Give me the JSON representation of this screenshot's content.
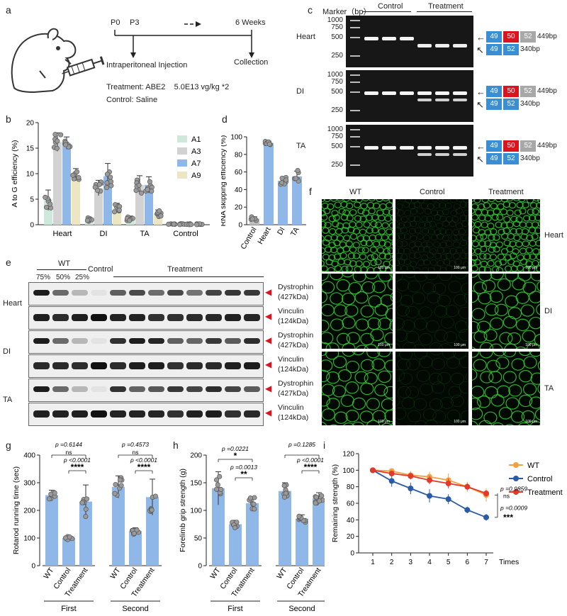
{
  "panels": {
    "a": "a",
    "b": "b",
    "c": "c",
    "d": "d",
    "e": "e",
    "f": "f",
    "g": "g",
    "h": "h",
    "i": "i"
  },
  "panel_a": {
    "timeline": [
      "P0",
      "P3",
      "6 Weeks"
    ],
    "injection_label": "Intraperitoneal Injection",
    "collection_label": "Collection",
    "treatment_text": "Treatment: ABE2    5.0E13 vg/kg *2",
    "control_text": "Control: Saline",
    "colors": {
      "arrow": "#222222",
      "mouse": "#333333"
    }
  },
  "panel_c": {
    "marker_label": "Marker（bp）",
    "group_labels": [
      "Control",
      "Treatment"
    ],
    "tissues": [
      "Heart",
      "DI",
      "TA"
    ],
    "ladder": [
      "1000",
      "750",
      "500",
      "250"
    ],
    "band_labels": [
      "449bp",
      "340bp"
    ],
    "exons_full": [
      "49",
      "50",
      "52"
    ],
    "exons_skip": [
      "49",
      "52"
    ],
    "colors": {
      "exon49": "#3a8fd4",
      "exon50": "#d9141e",
      "exon52_grey": "#a8a8a8",
      "exon52_blue": "#3a8fd4"
    }
  },
  "panel_e": {
    "wt_label": "WT",
    "wt_percents": [
      "75%",
      "50%",
      "25%"
    ],
    "control_label": "Control",
    "treatment_label": "Treatment",
    "tissues": [
      "Heart",
      "DI",
      "TA"
    ],
    "proteins": [
      {
        "name": "Dystrophin",
        "size": "(427kDa)"
      },
      {
        "name": "Vinculin",
        "size": "(124kDa)"
      }
    ],
    "arrow_color": "#d9141e"
  },
  "panel_f": {
    "columns": [
      "WT",
      "Control",
      "Treatment"
    ],
    "rows": [
      "Heart",
      "DI",
      "TA"
    ],
    "scale_bar": "100 μm",
    "colors": {
      "stain": "#32c832",
      "background": "#020802"
    }
  },
  "panel_g": {
    "p_first_ns": "p =0.6144",
    "ns": "ns",
    "p_first_sig": "p <0.0001",
    "stars_first": "****",
    "p_second_ns": "p =0.4573",
    "p_second_sig": "p <0.0001",
    "stars_second": "****"
  },
  "panel_h": {
    "p_first_a": "p =0.0221",
    "star1": "*",
    "p_first_b": "p =0.0013",
    "star2": "**",
    "p_second_ns": "p =0.1285",
    "p_second_sig": "p <0.0001",
    "star4": "****"
  },
  "panel_i": {
    "p_ns": "p =0.9859",
    "ns": "ns",
    "p_sig": "p =0.0009",
    "stars": "***"
  },
  "chart_data": [
    {
      "id": "b",
      "type": "bar",
      "ylabel": "A to G efficiency  (%)",
      "ylim": [
        0,
        20
      ],
      "yticks": [
        0,
        5,
        10,
        15,
        20
      ],
      "categories": [
        "Heart",
        "DI",
        "TA",
        "Control"
      ],
      "series": [
        {
          "name": "A1",
          "color": "#cfe8dc",
          "values": [
            4.8,
            1.0,
            1.2,
            0.1
          ],
          "err": [
            2.0,
            0.4,
            0.5,
            0.1
          ]
        },
        {
          "name": "A3",
          "color": "#d2d2d2",
          "values": [
            16.2,
            7.2,
            7.8,
            0.1
          ],
          "err": [
            1.8,
            1.5,
            1.8,
            0.1
          ]
        },
        {
          "name": "A7",
          "color": "#8fb8e8",
          "values": [
            16.0,
            9.5,
            7.8,
            0.1
          ],
          "err": [
            1.2,
            2.5,
            1.6,
            0.1
          ]
        },
        {
          "name": "A9",
          "color": "#ece6c2",
          "values": [
            9.8,
            3.3,
            2.2,
            0.1
          ],
          "err": [
            1.2,
            0.9,
            0.7,
            0.1
          ]
        }
      ]
    },
    {
      "id": "d",
      "type": "bar",
      "ylabel": "RNA skipping efficiency (%)",
      "ylim": [
        0,
        100
      ],
      "yticks": [
        0,
        20,
        40,
        60,
        80,
        100
      ],
      "categories": [
        "Control",
        "Heart",
        "DI",
        "TA"
      ],
      "colors": [
        "#bfbfbf",
        "#8fb8e8",
        "#8fb8e8",
        "#8fb8e8"
      ],
      "values": [
        7,
        93,
        50,
        55
      ],
      "err": [
        2,
        2,
        4,
        6
      ]
    },
    {
      "id": "g",
      "type": "bar",
      "ylabel": "Rotarod running time (sec)",
      "ylim": [
        0,
        400
      ],
      "yticks": [
        0,
        100,
        200,
        300,
        400
      ],
      "groups": [
        "First",
        "Second"
      ],
      "categories": [
        "WT",
        "Control",
        "Treatment"
      ],
      "values": [
        [
          255,
          100,
          232
        ],
        [
          285,
          125,
          248
        ]
      ],
      "err": [
        [
          18,
          7,
          60
        ],
        [
          40,
          12,
          65
        ]
      ]
    },
    {
      "id": "h",
      "type": "bar",
      "ylabel": "Forelimb grip strength (g)",
      "ylim": [
        0,
        200
      ],
      "yticks": [
        0,
        50,
        100,
        150,
        200
      ],
      "groups": [
        "First",
        "Second"
      ],
      "categories": [
        "WT",
        "Control",
        "Treatment"
      ],
      "values": [
        [
          140,
          75,
          113
        ],
        [
          135,
          85,
          122
        ]
      ],
      "err": [
        [
          30,
          7,
          12
        ],
        [
          15,
          7,
          10
        ]
      ]
    },
    {
      "id": "i",
      "type": "line",
      "ylabel": "Remaining strength (%)",
      "xlabel": "Times",
      "x": [
        1,
        2,
        3,
        4,
        5,
        6,
        7
      ],
      "ylim": [
        0,
        120
      ],
      "yticks": [
        0,
        20,
        40,
        60,
        80,
        100,
        120
      ],
      "series": [
        {
          "name": "WT",
          "color": "#f4a040",
          "values": [
            100,
            99,
            94,
            92,
            88,
            80,
            70
          ],
          "err": [
            0,
            2,
            5,
            6,
            8,
            6,
            8
          ]
        },
        {
          "name": "Control",
          "color": "#2a5aa8",
          "values": [
            100,
            87,
            78,
            69,
            65,
            52,
            43
          ],
          "err": [
            0,
            7,
            7,
            8,
            6,
            4,
            4
          ]
        },
        {
          "name": "Treatment",
          "color": "#e03a2a",
          "values": [
            100,
            96,
            93,
            88,
            84,
            80,
            72
          ],
          "err": [
            0,
            3,
            4,
            5,
            6,
            4,
            4
          ]
        }
      ]
    }
  ]
}
